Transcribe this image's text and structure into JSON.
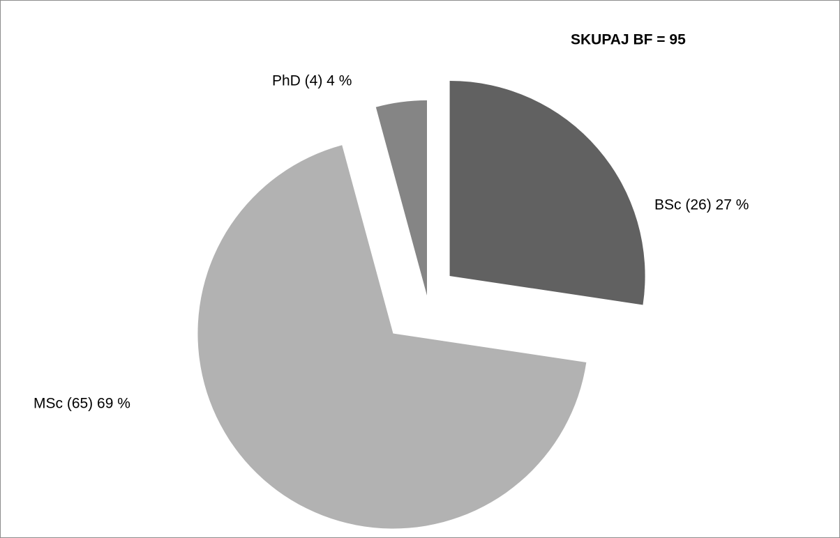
{
  "chart_data": {
    "type": "pie",
    "title": "SKUPAJ BF = 95",
    "values": [
      26,
      65,
      4
    ],
    "value_labels": [
      "BSc (26) 27 %",
      "MSc (65) 69 %",
      "PhD (4) 4 %"
    ],
    "colors": [
      "#616161",
      "#b2b2b2",
      "#858585"
    ]
  }
}
